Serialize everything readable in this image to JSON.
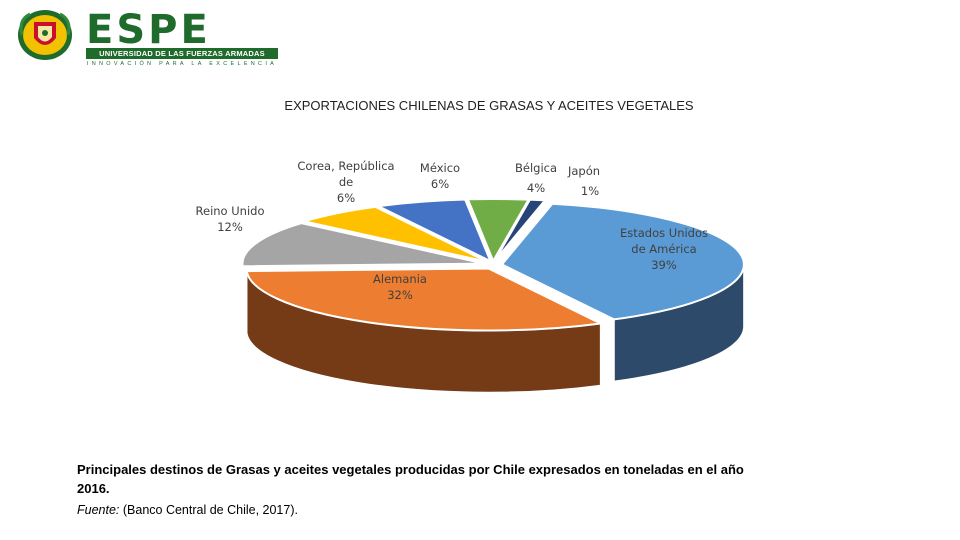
{
  "header": {
    "logo_wordmark": "ESPE",
    "logo_subtitle": "UNIVERSIDAD DE LAS FUERZAS ARMADAS",
    "logo_motto": "INNOVACIÓN PARA LA EXCELENCIA"
  },
  "chart_data": {
    "type": "pie",
    "title": "EXPORTACIONES CHILENAS DE GRASAS Y ACEITES VEGETALES",
    "slices": [
      {
        "label": [
          "Estados Unidos",
          "de América"
        ],
        "percent_label": "39%",
        "value": 39,
        "color": "#5b9bd5",
        "side_color": "#2e4a6b"
      },
      {
        "label": [
          "Alemania"
        ],
        "percent_label": "32%",
        "value": 32,
        "color": "#ed7d31",
        "side_color": "#743b16"
      },
      {
        "label": [
          "Reino Unido"
        ],
        "percent_label": "12%",
        "value": 12,
        "color": "#a5a5a5",
        "side_color": "#5a5a5a"
      },
      {
        "label": [
          "Corea, República",
          "de"
        ],
        "percent_label": "6%",
        "value": 6,
        "color": "#ffc000",
        "side_color": "#7f6000"
      },
      {
        "label": [
          "México"
        ],
        "percent_label": "6%",
        "value": 6,
        "color": "#4472c4",
        "side_color": "#223a66"
      },
      {
        "label": [
          "Bélgica"
        ],
        "percent_label": "4%",
        "value": 4,
        "color": "#70ad47",
        "side_color": "#385723"
      },
      {
        "label": [
          "Japón"
        ],
        "percent_label": "1%",
        "value": 1,
        "color": "#264478",
        "side_color": "#15264a"
      }
    ],
    "legend": "none",
    "style": "3d-exploded"
  },
  "caption": {
    "text": "Principales destinos de Grasas y aceites vegetales producidas por Chile expresados en toneladas en el año 2016.",
    "source_label": "Fuente:",
    "source_text": " (Banco Central de Chile, 2017)."
  }
}
